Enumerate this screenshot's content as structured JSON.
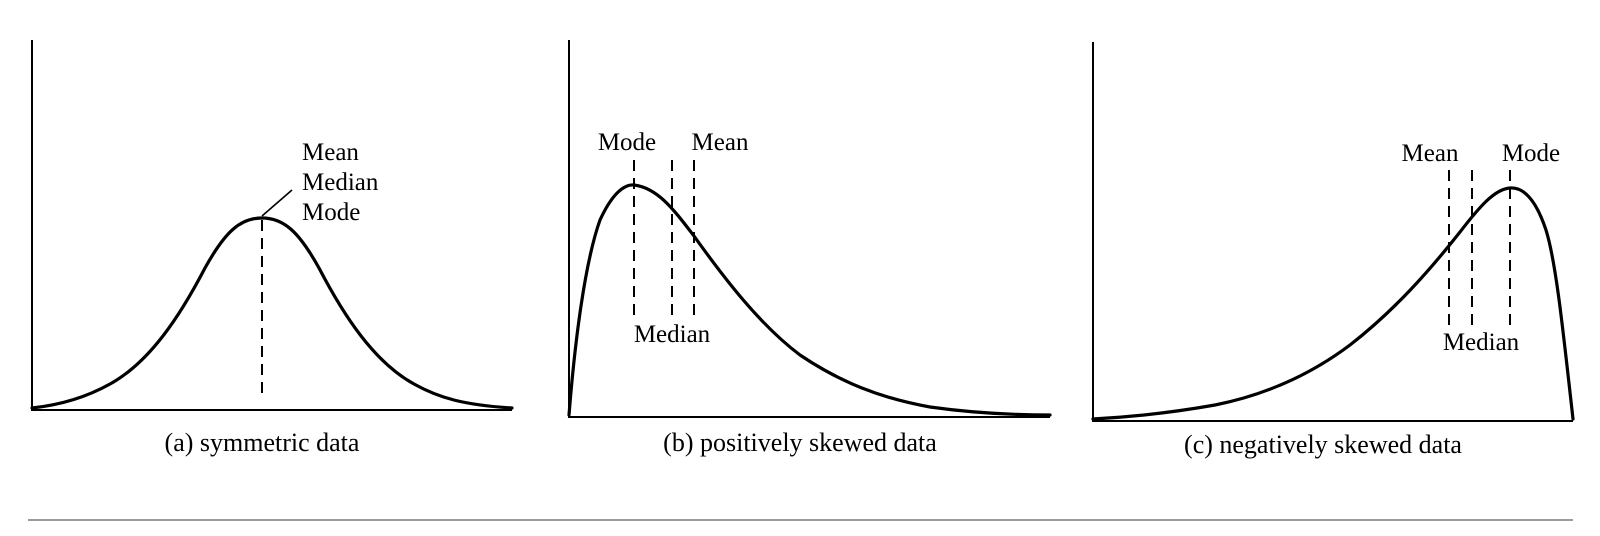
{
  "panels": [
    {
      "id": "a",
      "caption": "(a) symmetric data",
      "labels": {
        "mean": "Mean",
        "median": "Median",
        "mode": "Mode"
      },
      "shape": "symmetric"
    },
    {
      "id": "b",
      "caption": "(b) positively skewed data",
      "labels": {
        "mode": "Mode",
        "mean": "Mean",
        "median": "Median"
      },
      "shape": "positively skewed"
    },
    {
      "id": "c",
      "caption": "(c) negatively skewed data",
      "labels": {
        "mean": "Mean",
        "mode": "Mode",
        "median": "Median"
      },
      "shape": "negatively skewed"
    }
  ]
}
